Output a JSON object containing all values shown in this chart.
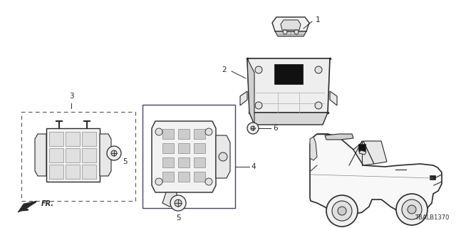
{
  "background_color": "#ffffff",
  "diagram_code": "TBALB1370",
  "line_color": "#2a2a2a",
  "dashed_color": "#555555",
  "solid_box_color": "#333355",
  "font_size_part": 7.5,
  "font_size_fr": 7,
  "font_size_code": 6,
  "figsize": [
    6.4,
    3.2
  ],
  "dpi": 100
}
